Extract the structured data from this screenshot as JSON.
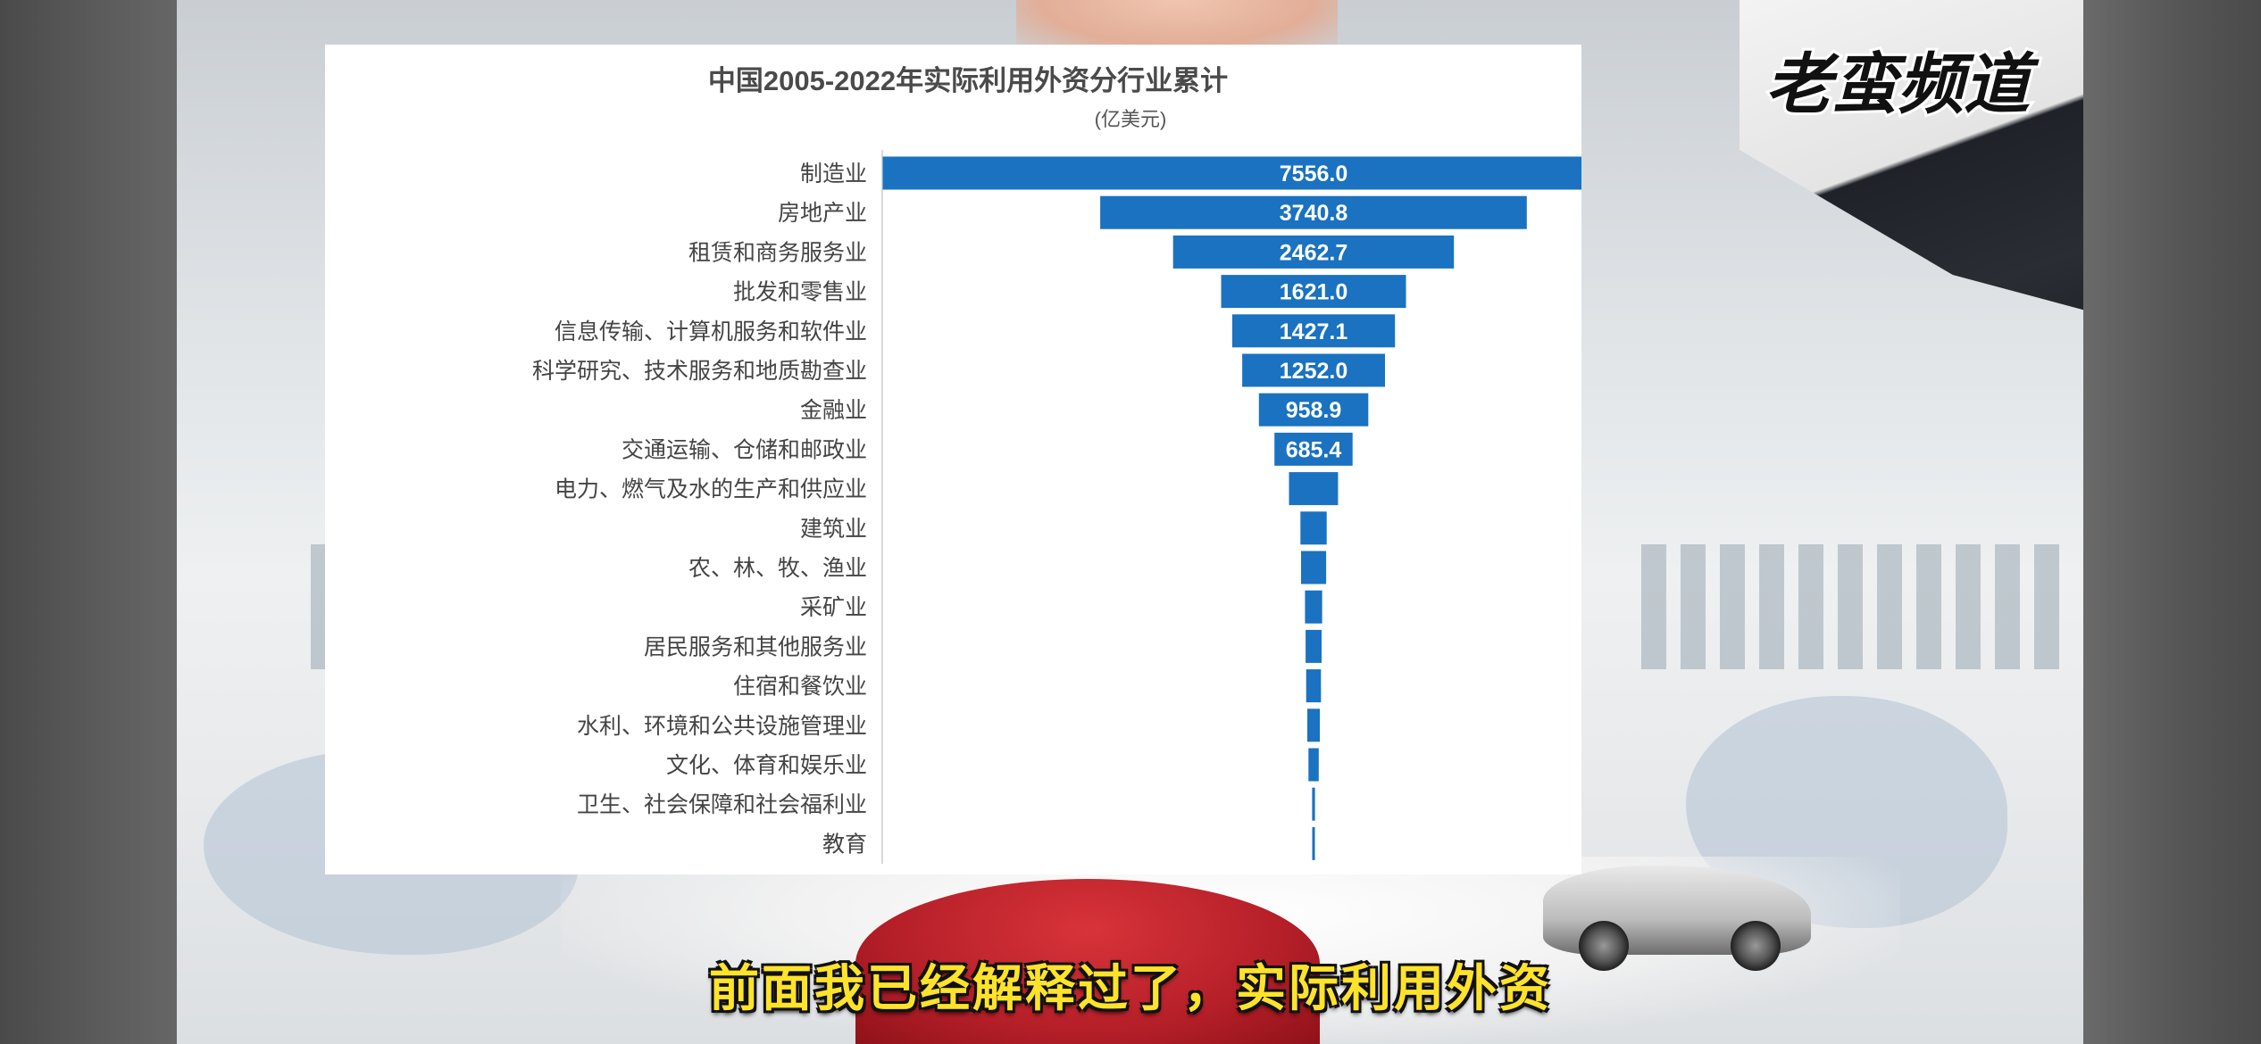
{
  "caption": "前面我已经解释过了，实际利用外资",
  "channel_logo_text": "老蛮频道",
  "colors": {
    "bar": "#1a72c1",
    "bar_label": "#ffffff",
    "category_text": "#444444",
    "title_text": "#4a4a4a",
    "caption_fill": "#ffe32b",
    "caption_outline": "#111111"
  },
  "chart_data": {
    "type": "bar",
    "orientation": "horizontal",
    "style": "funnel-centered",
    "title": "中国2005-2022年实际利用外资分行业累计",
    "subtitle": "(亿美元)",
    "xlabel": "",
    "ylabel": "",
    "grid": false,
    "legend": "none",
    "xlim": [
      0,
      7556
    ],
    "categories": [
      "制造业",
      "房地产业",
      "租赁和商务服务业",
      "批发和零售业",
      "信息传输、计算机服务和软件业",
      "科学研究、技术服务和地质勘查业",
      "金融业",
      "交通运输、仓储和邮政业",
      "电力、燃气及水的生产和供应业",
      "建筑业",
      "农、林、牧、渔业",
      "采矿业",
      "居民服务和其他服务业",
      "住宿和餐饮业",
      "水利、环境和公共设施管理业",
      "文化、体育和娱乐业",
      "卫生、社会保障和社会福利业",
      "教育"
    ],
    "values": [
      7556.0,
      3740.8,
      2462.7,
      1621.0,
      1427.1,
      1252.0,
      958.9,
      685.4,
      430,
      230,
      220,
      150,
      140,
      130,
      110,
      90,
      25,
      12
    ],
    "data_labels": [
      "7556.0",
      "3740.8",
      "2462.7",
      "1621.0",
      "1427.1",
      "1252.0",
      "958.9",
      "685.4",
      "",
      "",
      "",
      "",
      "",
      "",
      "",
      "",
      "",
      ""
    ]
  }
}
